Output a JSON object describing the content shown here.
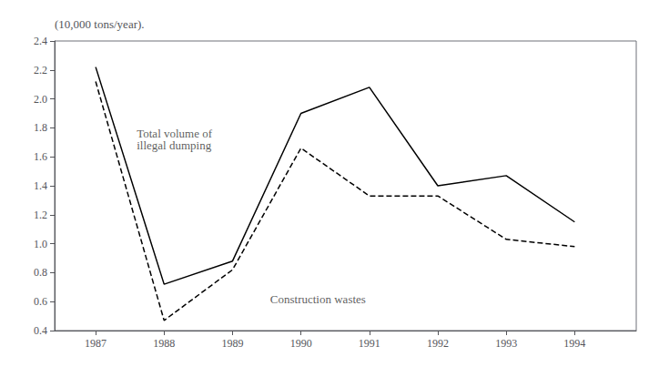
{
  "chart_data": {
    "type": "line",
    "x": [
      1987,
      1988,
      1989,
      1990,
      1991,
      1992,
      1993,
      1994
    ],
    "series": [
      {
        "values": [
          2.22,
          0.72,
          0.88,
          1.9,
          2.08,
          1.4,
          1.47,
          1.15
        ],
        "color": "#000000",
        "line_style": "solid"
      },
      {
        "values": [
          2.12,
          0.47,
          0.82,
          1.66,
          1.33,
          1.33,
          1.03,
          0.98
        ],
        "color": "#000000",
        "line_style": "dashed"
      }
    ],
    "annotations": [
      {
        "text": "Total volume of\nillegal dumping",
        "x": 1987.6,
        "y": 1.72
      },
      {
        "text": "Construction wastes",
        "x": 1989.55,
        "y": 0.615
      }
    ],
    "ylabel": "(10,000 tons/year).",
    "xlim": [
      1986.4,
      1994.9
    ],
    "xticks": [
      1987,
      1988,
      1989,
      1990,
      1991,
      1992,
      1993,
      1994
    ],
    "ylim": [
      0.4,
      2.4
    ],
    "yticks": [
      0.4,
      0.6,
      0.8,
      {
        "value": 1,
        "label": "1.0"
      },
      1.2,
      1.4,
      1.6,
      1.8,
      {
        "value": 2,
        "label": "2.0"
      },
      2.2,
      2.4
    ],
    "grid": false
  }
}
